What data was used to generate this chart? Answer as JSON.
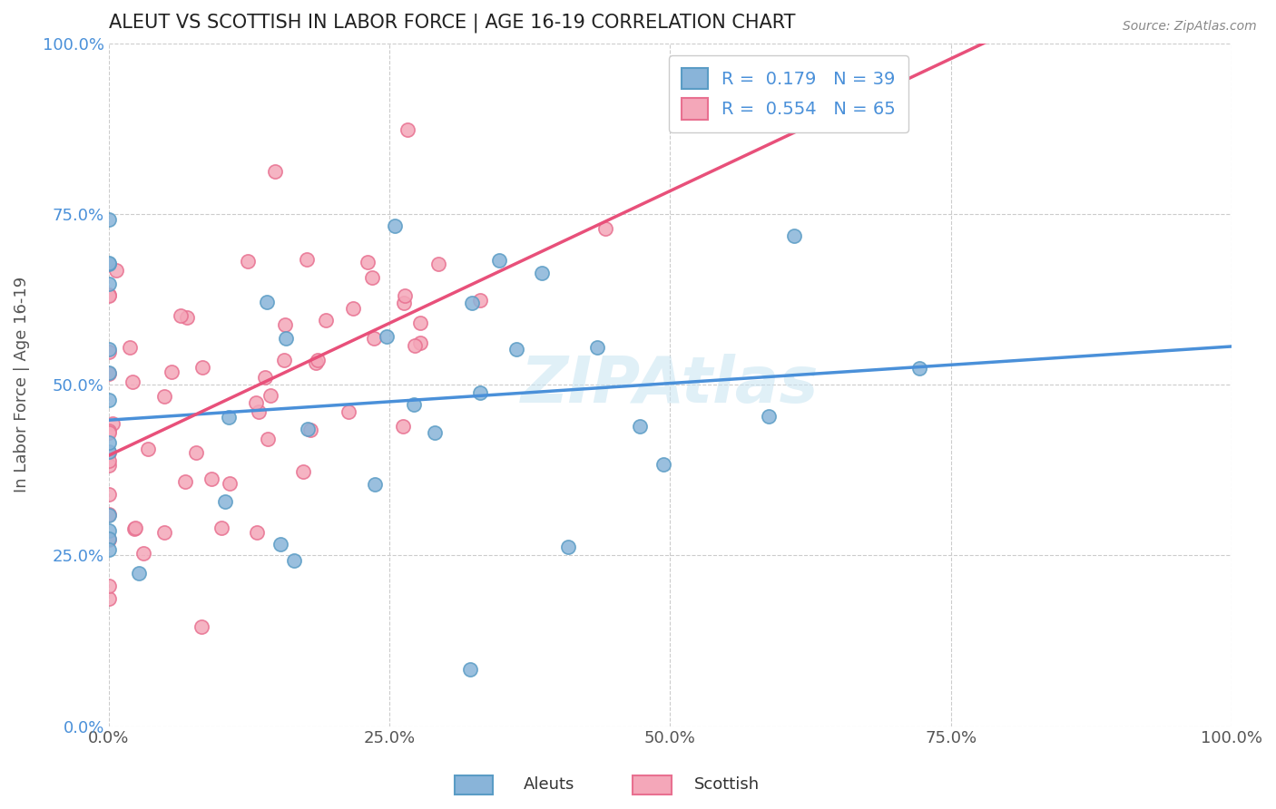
{
  "title": "ALEUT VS SCOTTISH IN LABOR FORCE | AGE 16-19 CORRELATION CHART",
  "source": "Source: ZipAtlas.com",
  "ylabel": "In Labor Force | Age 16-19",
  "xmin": 0.0,
  "xmax": 1.0,
  "ymin": 0.0,
  "ymax": 1.0,
  "xticks": [
    0.0,
    0.25,
    0.5,
    0.75,
    1.0
  ],
  "yticks": [
    0.0,
    0.25,
    0.5,
    0.75,
    1.0
  ],
  "xticklabels": [
    "0.0%",
    "25.0%",
    "50.0%",
    "75.0%",
    "100.0%"
  ],
  "yticklabels": [
    "0.0%",
    "25.0%",
    "50.0%",
    "75.0%",
    "100.0%"
  ],
  "aleut_color": "#89b4d9",
  "scottish_color": "#f4a7b9",
  "aleut_edge": "#5a9cc5",
  "scottish_edge": "#e87090",
  "trend_aleut_color": "#4a90d9",
  "trend_scottish_color": "#e8507a",
  "R_aleut": 0.179,
  "N_aleut": 39,
  "R_scottish": 0.554,
  "N_scottish": 65,
  "background_color": "#ffffff",
  "grid_color": "#cccccc",
  "watermark": "ZIPAtlas",
  "legend_label_aleut": "R =  0.179   N = 39",
  "legend_label_scottish": "R =  0.554   N = 65",
  "legend_text_color": "#4a90d9",
  "bottom_legend_aleuts": "Aleuts",
  "bottom_legend_scottish": "Scottish"
}
